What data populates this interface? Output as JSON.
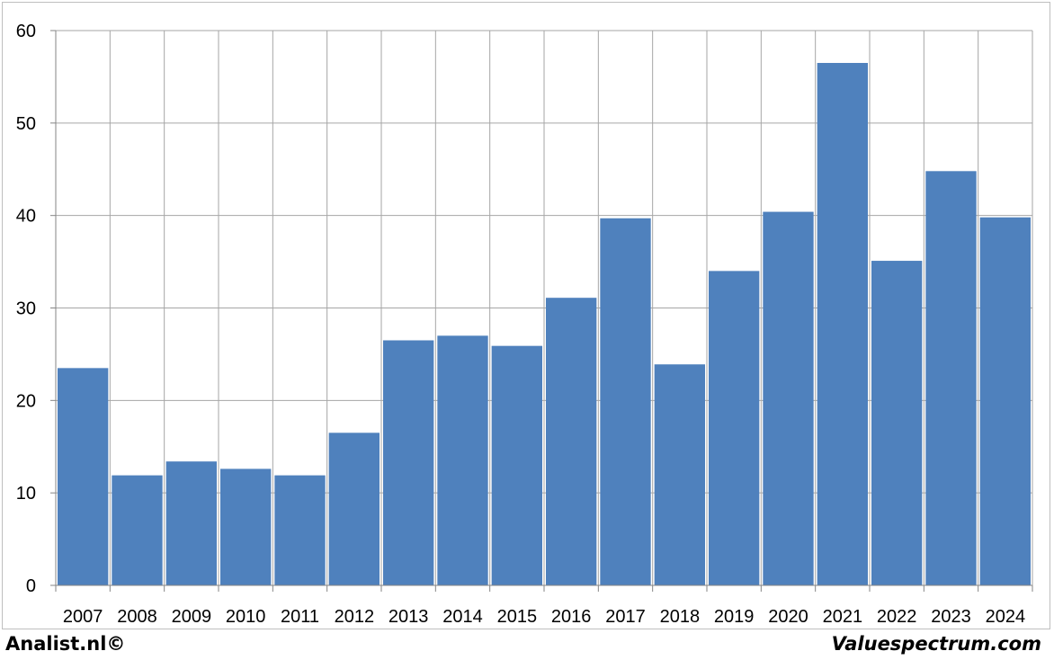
{
  "chart_data": {
    "type": "bar",
    "categories": [
      "2007",
      "2008",
      "2009",
      "2010",
      "2011",
      "2012",
      "2013",
      "2014",
      "2015",
      "2016",
      "2017",
      "2018",
      "2019",
      "2020",
      "2021",
      "2022",
      "2023",
      "2024"
    ],
    "values": [
      23.5,
      11.9,
      13.4,
      12.6,
      11.9,
      16.5,
      26.5,
      27.0,
      25.9,
      31.1,
      39.7,
      23.9,
      34.0,
      40.4,
      56.5,
      35.1,
      44.8,
      39.8
    ],
    "title": "",
    "xlabel": "",
    "ylabel": "",
    "ylim": [
      0,
      60
    ],
    "yticks": [
      "0",
      "10",
      "20",
      "30",
      "40",
      "50",
      "60"
    ],
    "grid": true,
    "bar_color": "#4f81bd",
    "grid_color": "#a6a6a6"
  },
  "footer": {
    "left": "Analist.nl©",
    "right": "Valuespectrum.com"
  }
}
